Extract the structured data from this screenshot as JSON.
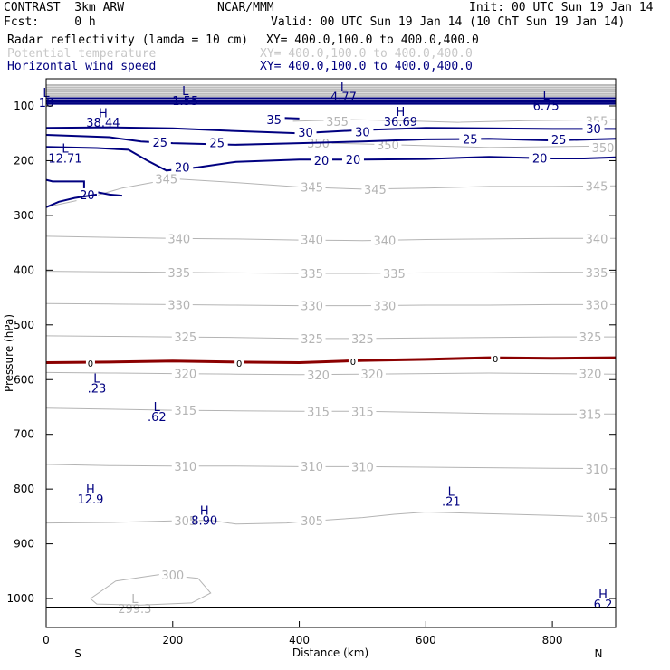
{
  "header": {
    "model": "CONTRAST  3km ARW",
    "center": "NCAR/MMM",
    "init": "Init: 00 UTC Sun 19 Jan 14",
    "fcst": "Fcst:     0 h",
    "valid": "Valid: 00 UTC Sun 19 Jan 14 (10 ChT Sun 19 Jan 14)"
  },
  "fields": [
    {
      "name": "Radar reflectivity (lamda = 10 cm)",
      "xy": "XY= 400.0,100.0 to 400.0,400.0",
      "color": "#000000"
    },
    {
      "name": "Potential temperature",
      "xy": "XY= 400.0,100.0 to 400.0,400.0",
      "color": "#c8c8c8"
    },
    {
      "name": "Horizontal wind speed",
      "xy": "XY= 400.0,100.0 to 400.0,400.0",
      "color": "#000080"
    }
  ],
  "chart_data": {
    "type": "contour-cross-section",
    "xlabel": "Distance (km)",
    "ylabel": "Pressure (hPa)",
    "xlim": [
      0,
      900
    ],
    "ylim": [
      1040,
      50
    ],
    "x_ticks": [
      0,
      200,
      400,
      600,
      800
    ],
    "y_ticks": [
      100,
      200,
      300,
      400,
      500,
      600,
      700,
      800,
      900,
      1000
    ],
    "x_end_labels": {
      "left": "S",
      "right": "N"
    },
    "colors": {
      "theta": "#b4b4b4",
      "wind": "#000080",
      "reflectivity": "#8b0000"
    },
    "potential_temperature": [
      {
        "level": 345,
        "points": [
          [
            0,
            285
          ],
          [
            60,
            270
          ],
          [
            120,
            250
          ],
          [
            200,
            233
          ],
          [
            300,
            240
          ],
          [
            400,
            248
          ],
          [
            500,
            252
          ],
          [
            600,
            250
          ],
          [
            700,
            247
          ],
          [
            800,
            247
          ],
          [
            900,
            246
          ]
        ],
        "labels": [
          [
            190,
            233
          ],
          [
            420,
            248
          ],
          [
            520,
            252
          ],
          [
            870,
            246
          ]
        ]
      },
      {
        "level": 340,
        "points": [
          [
            0,
            338
          ],
          [
            100,
            340
          ],
          [
            200,
            342
          ],
          [
            300,
            343
          ],
          [
            400,
            345
          ],
          [
            500,
            346
          ],
          [
            600,
            344
          ],
          [
            700,
            343
          ],
          [
            800,
            342
          ],
          [
            900,
            342
          ]
        ],
        "labels": [
          [
            210,
            342
          ],
          [
            420,
            344
          ],
          [
            535,
            346
          ],
          [
            870,
            342
          ]
        ]
      },
      {
        "level": 335,
        "points": [
          [
            0,
            402
          ],
          [
            100,
            403
          ],
          [
            200,
            404
          ],
          [
            300,
            405
          ],
          [
            400,
            406
          ],
          [
            500,
            406
          ],
          [
            600,
            405
          ],
          [
            700,
            405
          ],
          [
            800,
            404
          ],
          [
            900,
            404
          ]
        ],
        "labels": [
          [
            210,
            404
          ],
          [
            420,
            406
          ],
          [
            550,
            406
          ],
          [
            870,
            404
          ]
        ]
      },
      {
        "level": 330,
        "points": [
          [
            0,
            461
          ],
          [
            100,
            462
          ],
          [
            200,
            463
          ],
          [
            300,
            464
          ],
          [
            400,
            465
          ],
          [
            500,
            465
          ],
          [
            600,
            464
          ],
          [
            700,
            464
          ],
          [
            800,
            463
          ],
          [
            900,
            463
          ]
        ],
        "labels": [
          [
            210,
            463
          ],
          [
            420,
            465
          ],
          [
            535,
            465
          ],
          [
            870,
            463
          ]
        ]
      },
      {
        "level": 325,
        "points": [
          [
            0,
            520
          ],
          [
            100,
            521
          ],
          [
            200,
            522
          ],
          [
            300,
            523
          ],
          [
            400,
            525
          ],
          [
            500,
            525
          ],
          [
            600,
            524
          ],
          [
            700,
            523
          ],
          [
            800,
            522
          ],
          [
            900,
            522
          ]
        ],
        "labels": [
          [
            220,
            522
          ],
          [
            420,
            525
          ],
          [
            500,
            525
          ],
          [
            860,
            522
          ]
        ]
      },
      {
        "level": 320,
        "points": [
          [
            0,
            587
          ],
          [
            100,
            588
          ],
          [
            200,
            589
          ],
          [
            300,
            590
          ],
          [
            400,
            591
          ],
          [
            500,
            590
          ],
          [
            600,
            589
          ],
          [
            700,
            588
          ],
          [
            800,
            589
          ],
          [
            900,
            590
          ]
        ],
        "labels": [
          [
            220,
            589
          ],
          [
            430,
            591
          ],
          [
            515,
            590
          ],
          [
            860,
            589
          ]
        ]
      },
      {
        "level": 315,
        "points": [
          [
            0,
            652
          ],
          [
            100,
            654
          ],
          [
            200,
            656
          ],
          [
            300,
            657
          ],
          [
            400,
            658
          ],
          [
            500,
            658
          ],
          [
            600,
            660
          ],
          [
            700,
            662
          ],
          [
            800,
            663
          ],
          [
            900,
            663
          ]
        ],
        "labels": [
          [
            220,
            656
          ],
          [
            430,
            658
          ],
          [
            500,
            658
          ],
          [
            860,
            663
          ]
        ]
      },
      {
        "level": 310,
        "points": [
          [
            0,
            755
          ],
          [
            100,
            757
          ],
          [
            200,
            758
          ],
          [
            300,
            758
          ],
          [
            400,
            759
          ],
          [
            500,
            759
          ],
          [
            600,
            760
          ],
          [
            700,
            761
          ],
          [
            800,
            762
          ],
          [
            900,
            763
          ]
        ],
        "labels": [
          [
            220,
            758
          ],
          [
            420,
            758
          ],
          [
            500,
            759
          ],
          [
            870,
            763
          ]
        ]
      },
      {
        "level": 305,
        "points": [
          [
            0,
            862
          ],
          [
            100,
            861
          ],
          [
            200,
            858
          ],
          [
            260,
            857
          ],
          [
            300,
            864
          ],
          [
            380,
            862
          ],
          [
            400,
            860
          ],
          [
            500,
            852
          ],
          [
            550,
            846
          ],
          [
            600,
            842
          ],
          [
            700,
            845
          ],
          [
            800,
            848
          ],
          [
            900,
            852
          ]
        ],
        "labels": [
          [
            220,
            858
          ],
          [
            420,
            858
          ],
          [
            870,
            852
          ]
        ]
      },
      {
        "level": 300,
        "points": [
          [
            70,
            1000
          ],
          [
            110,
            968
          ],
          [
            180,
            956
          ],
          [
            240,
            963
          ],
          [
            260,
            990
          ],
          [
            230,
            1008
          ],
          [
            150,
            1012
          ],
          [
            80,
            1010
          ],
          [
            70,
            1000
          ]
        ],
        "labels": [
          [
            200,
            957
          ]
        ]
      },
      {
        "level": 355,
        "points": [
          [
            390,
            128
          ],
          [
            480,
            125
          ],
          [
            560,
            127
          ],
          [
            650,
            130
          ],
          [
            760,
            127
          ],
          [
            900,
            125
          ]
        ],
        "labels": [
          [
            460,
            128
          ],
          [
            870,
            127
          ]
        ]
      },
      {
        "level": 350,
        "points": [
          [
            300,
            170
          ],
          [
            380,
            168
          ],
          [
            450,
            168
          ],
          [
            550,
            171
          ],
          [
            700,
            176
          ],
          [
            900,
            173
          ]
        ],
        "labels": [
          [
            430,
            168
          ],
          [
            540,
            171
          ],
          [
            880,
            176
          ]
        ]
      }
    ],
    "wind_speed": [
      {
        "level": 35,
        "points": [
          [
            350,
            125
          ],
          [
            375,
            122
          ],
          [
            400,
            123
          ]
        ],
        "labels": [
          [
            360,
            125
          ]
        ]
      },
      {
        "level": 30,
        "points": [
          [
            0,
            140
          ],
          [
            100,
            139
          ],
          [
            200,
            141
          ],
          [
            300,
            146
          ],
          [
            400,
            150
          ],
          [
            500,
            144
          ],
          [
            600,
            140
          ],
          [
            700,
            141
          ],
          [
            800,
            142
          ],
          [
            900,
            142
          ]
        ],
        "labels": [
          [
            410,
            148
          ],
          [
            500,
            147
          ],
          [
            865,
            141
          ]
        ]
      },
      {
        "level": 25,
        "points": [
          [
            0,
            153
          ],
          [
            100,
            157
          ],
          [
            150,
            165
          ],
          [
            200,
            168
          ],
          [
            300,
            171
          ],
          [
            400,
            168
          ],
          [
            500,
            165
          ],
          [
            600,
            161
          ],
          [
            700,
            160
          ],
          [
            800,
            163
          ],
          [
            900,
            160
          ]
        ],
        "labels": [
          [
            180,
            166
          ],
          [
            270,
            167
          ],
          [
            670,
            160
          ],
          [
            810,
            161
          ]
        ]
      },
      {
        "level": 20,
        "points": [
          [
            0,
            175
          ],
          [
            80,
            177
          ],
          [
            130,
            180
          ],
          [
            160,
            200
          ],
          [
            190,
            218
          ],
          [
            240,
            212
          ],
          [
            300,
            202
          ],
          [
            400,
            198
          ],
          [
            500,
            198
          ],
          [
            600,
            197
          ],
          [
            700,
            193
          ],
          [
            800,
            196
          ],
          [
            850,
            196
          ],
          [
            900,
            194
          ]
        ],
        "labels": [
          [
            215,
            212
          ],
          [
            435,
            199
          ],
          [
            485,
            198
          ],
          [
            780,
            195
          ]
        ]
      },
      {
        "level": 20,
        "points": [
          [
            0,
            235
          ],
          [
            10,
            238
          ],
          [
            60,
            238
          ],
          [
            60,
            253
          ],
          [
            100,
            262
          ],
          [
            120,
            264
          ]
        ],
        "labels": [
          [
            65,
            262
          ]
        ]
      },
      {
        "level": 20,
        "points": [
          [
            0,
            285
          ],
          [
            20,
            275
          ],
          [
            45,
            268
          ],
          [
            80,
            262
          ]
        ],
        "labels": []
      }
    ],
    "upper_band_pressures": [
      62,
      66,
      70,
      74,
      78,
      82,
      86,
      90,
      93,
      96
    ],
    "reflectivity": [
      {
        "level": 0,
        "points": [
          [
            0,
            569
          ],
          [
            100,
            568
          ],
          [
            200,
            566
          ],
          [
            300,
            568
          ],
          [
            400,
            569
          ],
          [
            500,
            565
          ],
          [
            600,
            563
          ],
          [
            700,
            560
          ],
          [
            800,
            561
          ],
          [
            900,
            560
          ]
        ],
        "labels": [
          [
            70,
            568
          ],
          [
            305,
            568
          ],
          [
            485,
            565
          ],
          [
            710,
            560
          ]
        ]
      }
    ],
    "extrema": [
      {
        "kind": "L",
        "value": "1.55",
        "x": 220,
        "p": 90
      },
      {
        "kind": "L",
        "value": "4.77",
        "x": 470,
        "p": 83
      },
      {
        "kind": "L",
        "value": "6.75",
        "x": 790,
        "p": 99
      },
      {
        "kind": "L",
        "value": "18",
        "x": 0,
        "p": 93
      },
      {
        "kind": "H",
        "value": "38.44",
        "x": 90,
        "p": 130
      },
      {
        "kind": "H",
        "value": "36.69",
        "x": 560,
        "p": 128
      },
      {
        "kind": "L",
        "value": "12.71",
        "x": 30,
        "p": 195
      },
      {
        "kind": "L",
        "value": ".23",
        "x": 80,
        "p": 615
      },
      {
        "kind": "L",
        "value": ".62",
        "x": 175,
        "p": 667
      },
      {
        "kind": "H",
        "value": "12.9",
        "x": 70,
        "p": 818
      },
      {
        "kind": "H",
        "value": "8.90",
        "x": 250,
        "p": 857
      },
      {
        "kind": "L",
        "value": ".21",
        "x": 640,
        "p": 822
      },
      {
        "kind": "L",
        "value": "299.3",
        "x": 140,
        "p": 1018
      },
      {
        "kind": "H",
        "value": "6.2",
        "x": 880,
        "p": 1010
      }
    ]
  }
}
